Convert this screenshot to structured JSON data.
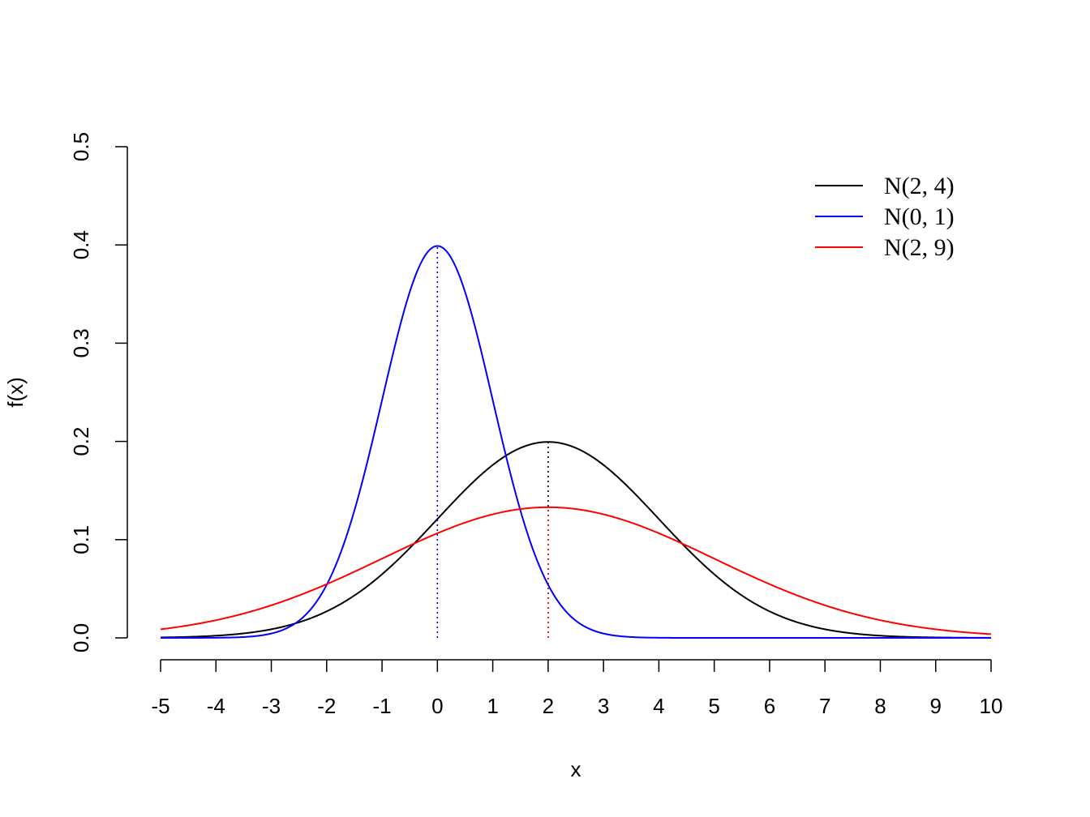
{
  "chart_data": {
    "type": "line",
    "title": "",
    "xlabel": "x",
    "ylabel": "f(x)",
    "xlim": [
      -5,
      10
    ],
    "ylim": [
      0,
      0.5
    ],
    "x_ticks": [
      "-5",
      "-4",
      "-3",
      "-2",
      "-1",
      "0",
      "1",
      "2",
      "3",
      "4",
      "5",
      "6",
      "7",
      "8",
      "9",
      "10"
    ],
    "y_ticks": [
      "0.0",
      "0.1",
      "0.2",
      "0.3",
      "0.4",
      "0.5"
    ],
    "x_tick_values": [
      -5,
      -4,
      -3,
      -2,
      -1,
      0,
      1,
      2,
      3,
      4,
      5,
      6,
      7,
      8,
      9,
      10
    ],
    "y_tick_values": [
      0,
      0.1,
      0.2,
      0.3,
      0.4,
      0.5
    ],
    "legend_position": "top-right",
    "series": [
      {
        "name": "N(2, 4)",
        "mean": 2,
        "variance": 4,
        "sd": 2,
        "color": "#000000",
        "mean_line": true,
        "mean_line_color": "#000000"
      },
      {
        "name": "N(0, 1)",
        "mean": 0,
        "variance": 1,
        "sd": 1,
        "color": "#0000ff",
        "mean_line": true,
        "mean_line_color": "#0000ff"
      },
      {
        "name": "N(2, 9)",
        "mean": 2,
        "variance": 9,
        "sd": 3,
        "color": "#ff0000",
        "mean_line": true,
        "mean_line_color": "#ff0000"
      }
    ]
  }
}
